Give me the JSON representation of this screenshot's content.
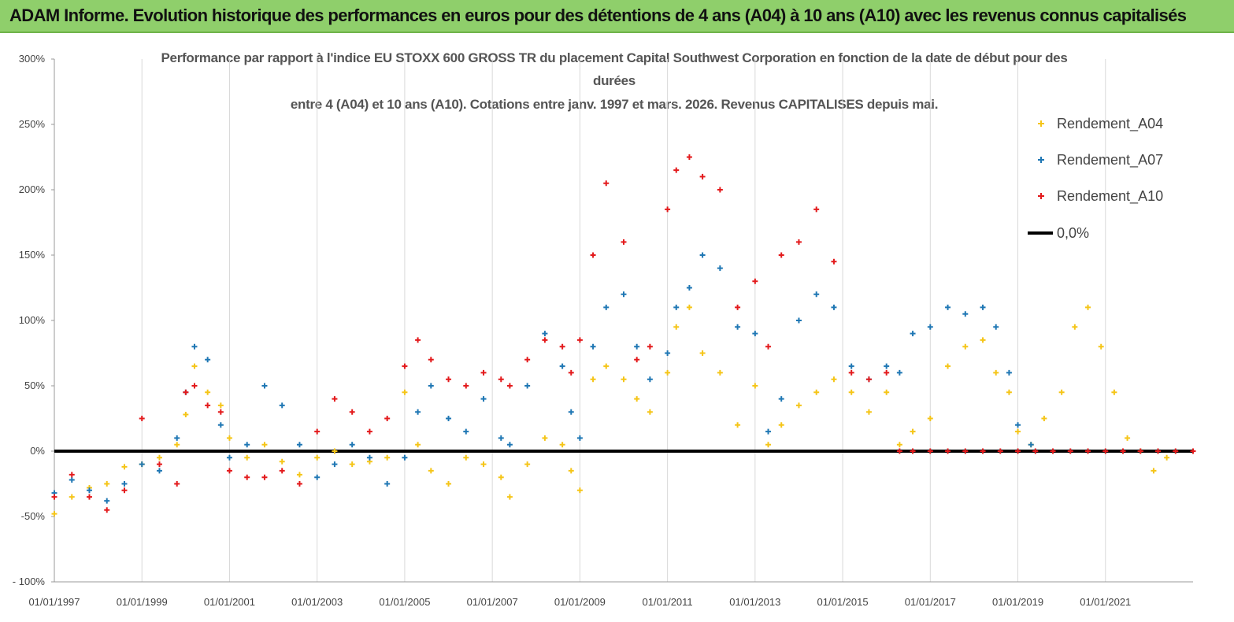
{
  "banner": {
    "title": "ADAM Informe. Evolution historique des performances en euros pour des détentions de 4 ans (A04) à 10 ans (A10) avec les revenus connus capitalisés"
  },
  "chart_data": {
    "type": "scatter",
    "title_line1": "Performance par rapport à l'indice EU STOXX 600 GROSS TR  du placement Capital Southwest Corporation en fonction de la date de début pour des",
    "title_line2": "durées",
    "title_line3": "entre 4 (A04) et 10 ans (A10). Cotations entre janv. 1997 et mars. 2026. Revenus CAPITALISES depuis mai.",
    "xlabel": "",
    "ylabel": "",
    "xlim": [
      1997.0,
      2023.0
    ],
    "ylim": [
      -100,
      300
    ],
    "y_ticks": [
      "300%",
      "250%",
      "200%",
      "150%",
      "100%",
      "50%",
      "0%",
      "-50%",
      "- 100%"
    ],
    "y_tick_values": [
      300,
      250,
      200,
      150,
      100,
      50,
      0,
      -50,
      -100
    ],
    "x_ticks": [
      "01/01/1997",
      "01/01/1999",
      "01/01/2001",
      "01/01/2003",
      "01/01/2005",
      "01/01/2007",
      "01/01/2009",
      "01/01/2011",
      "01/01/2013",
      "01/01/2015",
      "01/01/2017",
      "01/01/2019",
      "01/01/2021"
    ],
    "x_tick_values": [
      1997,
      1999,
      2001,
      2003,
      2005,
      2007,
      2009,
      2011,
      2013,
      2015,
      2017,
      2019,
      2021
    ],
    "grid": "x",
    "legend_position": "top-right",
    "series": [
      {
        "name": "Rendement_A04",
        "color": "#f5c518",
        "marker": "plus",
        "points": [
          [
            1997.0,
            -48
          ],
          [
            1997.4,
            -35
          ],
          [
            1997.8,
            -28
          ],
          [
            1998.2,
            -25
          ],
          [
            1998.6,
            -12
          ],
          [
            1999.0,
            -10
          ],
          [
            1999.4,
            -5
          ],
          [
            1999.8,
            5
          ],
          [
            2000.0,
            28
          ],
          [
            2000.2,
            65
          ],
          [
            2000.5,
            45
          ],
          [
            2000.8,
            35
          ],
          [
            2001.0,
            10
          ],
          [
            2001.4,
            -5
          ],
          [
            2001.8,
            5
          ],
          [
            2002.2,
            -8
          ],
          [
            2002.6,
            -18
          ],
          [
            2003.0,
            -5
          ],
          [
            2003.4,
            0
          ],
          [
            2003.8,
            -10
          ],
          [
            2004.2,
            -8
          ],
          [
            2004.6,
            -5
          ],
          [
            2005.0,
            45
          ],
          [
            2005.3,
            5
          ],
          [
            2005.6,
            -15
          ],
          [
            2006.0,
            -25
          ],
          [
            2006.4,
            -5
          ],
          [
            2006.8,
            -10
          ],
          [
            2007.2,
            -20
          ],
          [
            2007.4,
            -35
          ],
          [
            2007.8,
            -10
          ],
          [
            2008.2,
            10
          ],
          [
            2008.6,
            5
          ],
          [
            2008.8,
            -15
          ],
          [
            2009.0,
            -30
          ],
          [
            2009.3,
            55
          ],
          [
            2009.6,
            65
          ],
          [
            2010.0,
            55
          ],
          [
            2010.3,
            40
          ],
          [
            2010.6,
            30
          ],
          [
            2011.0,
            60
          ],
          [
            2011.2,
            95
          ],
          [
            2011.5,
            110
          ],
          [
            2011.8,
            75
          ],
          [
            2012.2,
            60
          ],
          [
            2012.6,
            20
          ],
          [
            2013.0,
            50
          ],
          [
            2013.3,
            5
          ],
          [
            2013.6,
            20
          ],
          [
            2014.0,
            35
          ],
          [
            2014.4,
            45
          ],
          [
            2014.8,
            55
          ],
          [
            2015.2,
            45
          ],
          [
            2015.6,
            30
          ],
          [
            2016.0,
            45
          ],
          [
            2016.3,
            5
          ],
          [
            2016.6,
            15
          ],
          [
            2017.0,
            25
          ],
          [
            2017.4,
            65
          ],
          [
            2017.8,
            80
          ],
          [
            2018.2,
            85
          ],
          [
            2018.5,
            60
          ],
          [
            2018.8,
            45
          ],
          [
            2019.0,
            15
          ],
          [
            2019.3,
            5
          ],
          [
            2019.6,
            25
          ],
          [
            2020.0,
            45
          ],
          [
            2020.3,
            95
          ],
          [
            2020.6,
            110
          ],
          [
            2020.9,
            80
          ],
          [
            2021.2,
            45
          ],
          [
            2021.5,
            10
          ],
          [
            2021.8,
            0
          ],
          [
            2022.1,
            -15
          ],
          [
            2022.4,
            -5
          ]
        ]
      },
      {
        "name": "Rendement_A07",
        "color": "#1f77b4",
        "marker": "plus",
        "points": [
          [
            1997.0,
            -32
          ],
          [
            1997.4,
            -22
          ],
          [
            1997.8,
            -30
          ],
          [
            1998.2,
            -38
          ],
          [
            1998.6,
            -25
          ],
          [
            1999.0,
            -10
          ],
          [
            1999.4,
            -15
          ],
          [
            1999.8,
            10
          ],
          [
            2000.0,
            45
          ],
          [
            2000.2,
            80
          ],
          [
            2000.5,
            70
          ],
          [
            2000.8,
            20
          ],
          [
            2001.0,
            -5
          ],
          [
            2001.4,
            5
          ],
          [
            2001.8,
            50
          ],
          [
            2002.2,
            35
          ],
          [
            2002.6,
            5
          ],
          [
            2003.0,
            -20
          ],
          [
            2003.4,
            -10
          ],
          [
            2003.8,
            5
          ],
          [
            2004.2,
            -5
          ],
          [
            2004.6,
            -25
          ],
          [
            2005.0,
            -5
          ],
          [
            2005.3,
            30
          ],
          [
            2005.6,
            50
          ],
          [
            2006.0,
            25
          ],
          [
            2006.4,
            15
          ],
          [
            2006.8,
            40
          ],
          [
            2007.2,
            10
          ],
          [
            2007.4,
            5
          ],
          [
            2007.8,
            50
          ],
          [
            2008.2,
            90
          ],
          [
            2008.6,
            65
          ],
          [
            2008.8,
            30
          ],
          [
            2009.0,
            10
          ],
          [
            2009.3,
            80
          ],
          [
            2009.6,
            110
          ],
          [
            2010.0,
            120
          ],
          [
            2010.3,
            80
          ],
          [
            2010.6,
            55
          ],
          [
            2011.0,
            75
          ],
          [
            2011.2,
            110
          ],
          [
            2011.5,
            125
          ],
          [
            2011.8,
            150
          ],
          [
            2012.2,
            140
          ],
          [
            2012.6,
            95
          ],
          [
            2013.0,
            90
          ],
          [
            2013.3,
            15
          ],
          [
            2013.6,
            40
          ],
          [
            2014.0,
            100
          ],
          [
            2014.4,
            120
          ],
          [
            2014.8,
            110
          ],
          [
            2015.2,
            65
          ],
          [
            2015.6,
            55
          ],
          [
            2016.0,
            65
          ],
          [
            2016.3,
            60
          ],
          [
            2016.6,
            90
          ],
          [
            2017.0,
            95
          ],
          [
            2017.4,
            110
          ],
          [
            2017.8,
            105
          ],
          [
            2018.2,
            110
          ],
          [
            2018.5,
            95
          ],
          [
            2018.8,
            60
          ],
          [
            2019.0,
            20
          ],
          [
            2019.3,
            5
          ]
        ]
      },
      {
        "name": "Rendement_A10",
        "color": "#e31a1c",
        "marker": "plus",
        "points": [
          [
            1997.0,
            -35
          ],
          [
            1997.4,
            -18
          ],
          [
            1997.8,
            -35
          ],
          [
            1998.2,
            -45
          ],
          [
            1998.6,
            -30
          ],
          [
            1999.0,
            25
          ],
          [
            1999.4,
            -10
          ],
          [
            1999.8,
            -25
          ],
          [
            2000.0,
            45
          ],
          [
            2000.2,
            50
          ],
          [
            2000.5,
            35
          ],
          [
            2000.8,
            30
          ],
          [
            2001.0,
            -15
          ],
          [
            2001.4,
            -20
          ],
          [
            2001.8,
            -20
          ],
          [
            2002.2,
            -15
          ],
          [
            2002.6,
            -25
          ],
          [
            2003.0,
            15
          ],
          [
            2003.4,
            40
          ],
          [
            2003.8,
            30
          ],
          [
            2004.2,
            15
          ],
          [
            2004.6,
            25
          ],
          [
            2005.0,
            65
          ],
          [
            2005.3,
            85
          ],
          [
            2005.6,
            70
          ],
          [
            2006.0,
            55
          ],
          [
            2006.4,
            50
          ],
          [
            2006.8,
            60
          ],
          [
            2007.2,
            55
          ],
          [
            2007.4,
            50
          ],
          [
            2007.8,
            70
          ],
          [
            2008.2,
            85
          ],
          [
            2008.6,
            80
          ],
          [
            2008.8,
            60
          ],
          [
            2009.0,
            85
          ],
          [
            2009.3,
            150
          ],
          [
            2009.6,
            205
          ],
          [
            2010.0,
            160
          ],
          [
            2010.3,
            70
          ],
          [
            2010.6,
            80
          ],
          [
            2011.0,
            185
          ],
          [
            2011.2,
            215
          ],
          [
            2011.5,
            225
          ],
          [
            2011.8,
            210
          ],
          [
            2012.2,
            200
          ],
          [
            2012.6,
            110
          ],
          [
            2013.0,
            130
          ],
          [
            2013.3,
            80
          ],
          [
            2013.6,
            150
          ],
          [
            2014.0,
            160
          ],
          [
            2014.4,
            185
          ],
          [
            2014.8,
            145
          ],
          [
            2015.2,
            60
          ],
          [
            2015.6,
            55
          ],
          [
            2016.0,
            60
          ],
          [
            2016.3,
            0
          ],
          [
            2016.6,
            0
          ],
          [
            2017.0,
            0
          ],
          [
            2017.4,
            0
          ],
          [
            2017.8,
            0
          ],
          [
            2018.2,
            0
          ],
          [
            2018.6,
            0
          ],
          [
            2019.0,
            0
          ],
          [
            2019.4,
            0
          ],
          [
            2019.8,
            0
          ],
          [
            2020.2,
            0
          ],
          [
            2020.6,
            0
          ],
          [
            2021.0,
            0
          ],
          [
            2021.4,
            0
          ],
          [
            2021.8,
            0
          ],
          [
            2022.2,
            0
          ],
          [
            2022.6,
            0
          ],
          [
            2023.0,
            0
          ]
        ]
      },
      {
        "name": "0,0%",
        "color": "#000000",
        "marker": "line",
        "points": [
          [
            1997.0,
            0
          ],
          [
            2023.0,
            0
          ]
        ]
      }
    ]
  }
}
